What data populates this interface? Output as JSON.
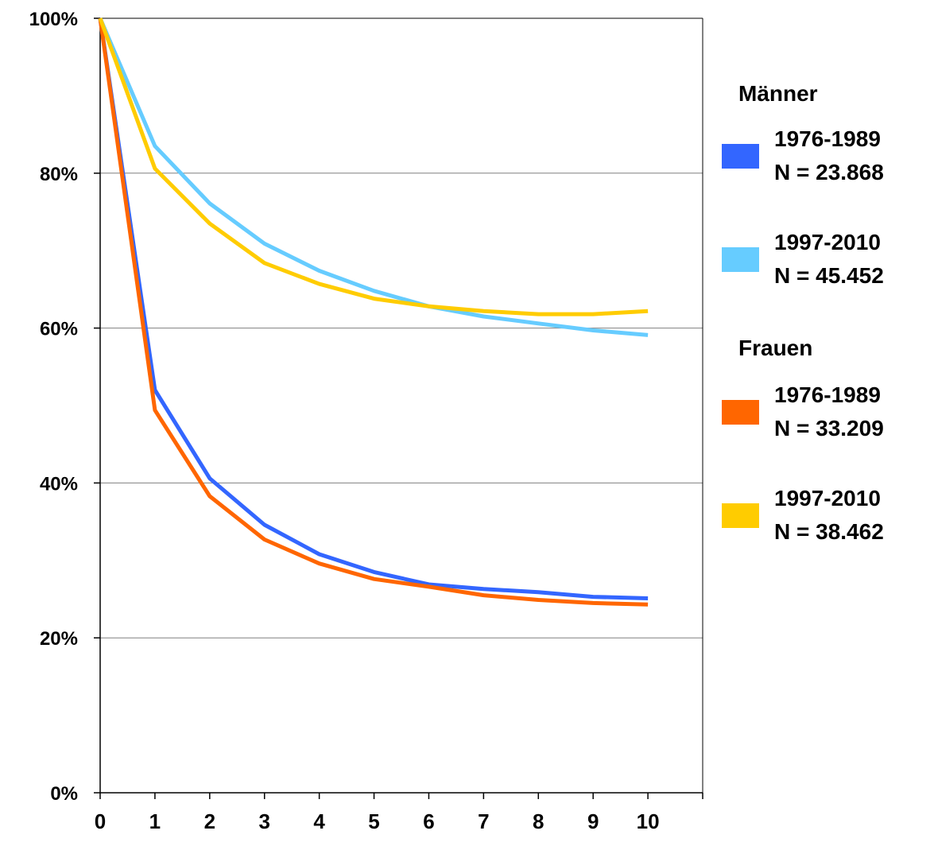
{
  "chart_data": {
    "type": "line",
    "title": "",
    "xlabel": "",
    "ylabel": "",
    "x": [
      0,
      1,
      2,
      3,
      4,
      5,
      6,
      7,
      8,
      9,
      10
    ],
    "xlim": [
      0,
      11
    ],
    "ylim": [
      0,
      100
    ],
    "y_ticks": [
      0,
      20,
      40,
      60,
      80,
      100
    ],
    "y_tick_labels": [
      "0%",
      "20%",
      "40%",
      "60%",
      "80%",
      "100%"
    ],
    "x_tick_labels": [
      "0",
      "1",
      "2",
      "3",
      "4",
      "5",
      "6",
      "7",
      "8",
      "9",
      "10"
    ],
    "grid": "horizontal",
    "legend_position": "right",
    "legend_groups": [
      {
        "title": "Männer",
        "series": [
          0,
          1
        ]
      },
      {
        "title": "Frauen",
        "series": [
          2,
          3
        ]
      }
    ],
    "series": [
      {
        "name": "1976-1989",
        "n_label": "N = 23.868",
        "color": "#3366ff",
        "values": [
          100,
          52,
          40.6,
          34.6,
          30.8,
          28.5,
          26.9,
          26.3,
          25.9,
          25.3,
          25.1
        ]
      },
      {
        "name": "1997-2010",
        "n_label": "N = 45.452",
        "color": "#66ccff",
        "values": [
          100,
          83.5,
          76.1,
          70.9,
          67.4,
          64.8,
          62.8,
          61.5,
          60.6,
          59.7,
          59.1
        ]
      },
      {
        "name": "1976-1989",
        "n_label": "N = 33.209",
        "color": "#ff6600",
        "values": [
          100,
          49.4,
          38.3,
          32.7,
          29.6,
          27.6,
          26.6,
          25.5,
          24.9,
          24.5,
          24.3
        ]
      },
      {
        "name": "1997-2010",
        "n_label": "N = 38.462",
        "color": "#ffcc00",
        "values": [
          100,
          80.6,
          73.5,
          68.4,
          65.7,
          63.8,
          62.8,
          62.2,
          61.8,
          61.8,
          62.2
        ]
      }
    ]
  }
}
